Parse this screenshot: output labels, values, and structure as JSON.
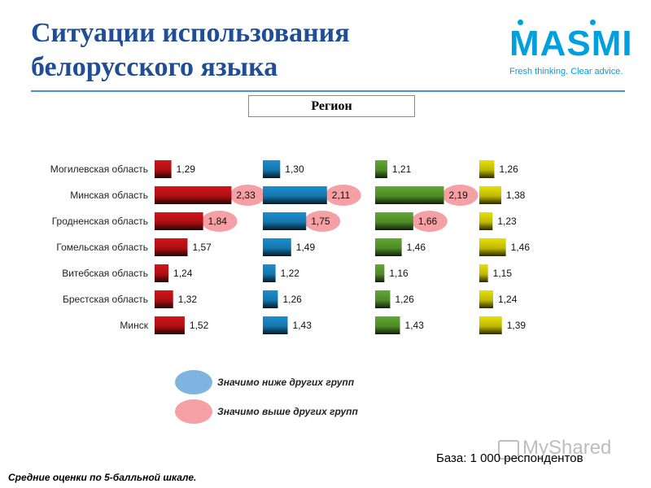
{
  "title_line1": "Ситуации использования",
  "title_line2": "белорусского языка",
  "logo": {
    "text": "MASMI",
    "tagline": "Fresh thinking. Clear advice.",
    "color": "#00a0df"
  },
  "region_label": "Регион",
  "chart_data": {
    "type": "bar",
    "orientation": "horizontal",
    "categories": [
      "Могилевская область",
      "Минская область",
      "Гродненская область",
      "Гомельская область",
      "Витебская область",
      "Брестская область",
      "Минск"
    ],
    "series": [
      {
        "values": [
          1.29,
          2.33,
          1.84,
          1.57,
          1.24,
          1.32,
          1.52
        ],
        "labels": [
          "1,29",
          "2,33",
          "1,84",
          "1,57",
          "1,24",
          "1,32",
          "1,52"
        ],
        "color": "#d41418",
        "highlight": [
          null,
          "high",
          "high",
          null,
          null,
          null,
          null
        ]
      },
      {
        "values": [
          1.3,
          2.11,
          1.75,
          1.49,
          1.22,
          1.26,
          1.43
        ],
        "labels": [
          "1,30",
          "2,11",
          "1,75",
          "1,49",
          "1,22",
          "1,26",
          "1,43"
        ],
        "color": "#1a8fd0",
        "highlight": [
          null,
          "high",
          "high",
          null,
          null,
          null,
          null
        ]
      },
      {
        "values": [
          1.21,
          2.19,
          1.66,
          1.46,
          1.16,
          1.26,
          1.43
        ],
        "labels": [
          "1,21",
          "2,19",
          "1,66",
          "1,46",
          "1,16",
          "1,26",
          "1,43"
        ],
        "color": "#5fa832",
        "highlight": [
          null,
          "high",
          "high",
          null,
          null,
          null,
          null
        ]
      },
      {
        "values": [
          1.26,
          1.38,
          1.23,
          1.46,
          1.15,
          1.24,
          1.39
        ],
        "labels": [
          "1,26",
          "1,38",
          "1,23",
          "1,46",
          "1,15",
          "1,24",
          "1,39"
        ],
        "color": "#e8e000",
        "highlight": [
          null,
          null,
          null,
          null,
          null,
          null,
          null
        ]
      }
    ],
    "scale": "5-point mean",
    "grid": false
  },
  "legend": {
    "low": {
      "text": "Значимо ниже других групп",
      "color": "#7fb3e0"
    },
    "high": {
      "text": "Значимо выше других групп",
      "color": "#f4a0a4"
    }
  },
  "base_text": "База: 1 000 респондентов",
  "footnote": "Средние оценки по 5-балльной шкале.",
  "watermark": "MyShared"
}
